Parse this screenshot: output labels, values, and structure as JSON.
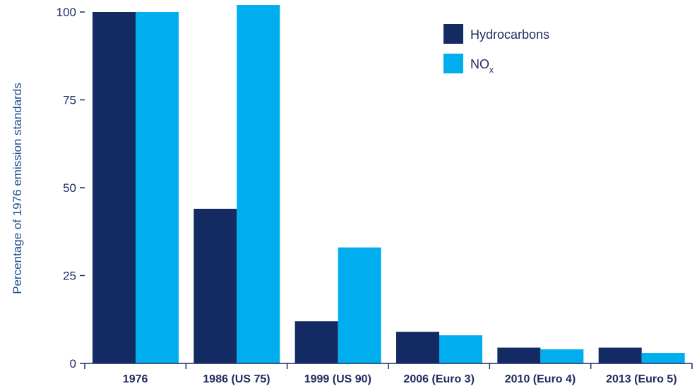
{
  "chart_data": {
    "type": "bar",
    "categories": [
      "1976",
      "1986 (US 75)",
      "1999 (US 90)",
      "2006 (Euro 3)",
      "2010 (Euro 4)",
      "2013 (Euro 5)"
    ],
    "series": [
      {
        "name": "Hydrocarbons",
        "values": [
          100,
          44,
          12,
          9,
          4.5,
          4.5
        ],
        "color": "#132a63"
      },
      {
        "name": "NO",
        "name_subscript": "x",
        "values": [
          100,
          102,
          33,
          8,
          4,
          3
        ],
        "color": "#00aeef"
      }
    ],
    "ylabel": "Percentage of 1976 emission standards",
    "xlabel": "",
    "ylim": [
      0,
      100
    ],
    "yticks": [
      "0",
      "25",
      "50",
      "75",
      "100"
    ],
    "grid": false,
    "legend": "top-right"
  }
}
